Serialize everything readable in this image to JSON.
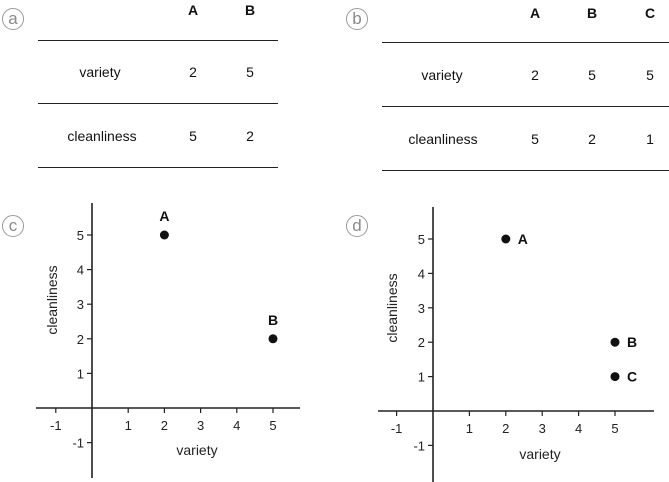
{
  "panels": [
    {
      "letter": "a",
      "table": {
        "columns": [
          "A",
          "B"
        ],
        "rows": [
          {
            "label": "variety",
            "values": [
              "2",
              "5"
            ]
          },
          {
            "label": "cleanliness",
            "values": [
              "5",
              "2"
            ]
          }
        ]
      }
    },
    {
      "letter": "b",
      "table": {
        "columns": [
          "A",
          "B",
          "C"
        ],
        "rows": [
          {
            "label": "variety",
            "values": [
              "2",
              "5",
              "5"
            ]
          },
          {
            "label": "cleanliness",
            "values": [
              "5",
              "2",
              "1"
            ]
          }
        ]
      }
    },
    {
      "letter": "c"
    },
    {
      "letter": "d"
    }
  ],
  "chart_data": [
    {
      "type": "scatter",
      "xlabel": "variety",
      "ylabel": "cleanliness",
      "x_ticks": [
        "-1",
        "1",
        "2",
        "3",
        "4",
        "5"
      ],
      "y_ticks": [
        "-1",
        "1",
        "2",
        "3",
        "4",
        "5"
      ],
      "points": [
        {
          "label": "A",
          "x": 2,
          "y": 5
        },
        {
          "label": "B",
          "x": 5,
          "y": 2
        }
      ]
    },
    {
      "type": "scatter",
      "xlabel": "variety",
      "ylabel": "cleanliness",
      "x_ticks": [
        "-1",
        "1",
        "2",
        "3",
        "4",
        "5"
      ],
      "y_ticks": [
        "-1",
        "1",
        "2",
        "3",
        "4",
        "5"
      ],
      "points": [
        {
          "label": "A",
          "x": 2,
          "y": 5
        },
        {
          "label": "B",
          "x": 5,
          "y": 2
        },
        {
          "label": "C",
          "x": 5,
          "y": 1
        }
      ]
    }
  ]
}
